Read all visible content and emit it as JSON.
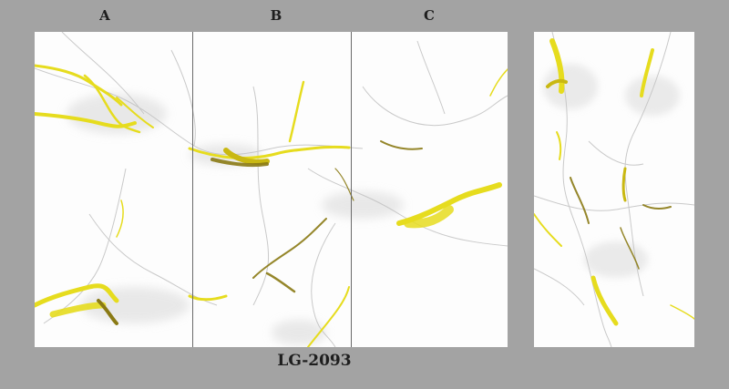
{
  "panels": {
    "labels": [
      "A",
      "B",
      "C"
    ]
  },
  "product": {
    "model_code": "LG-2093"
  },
  "colors": {
    "background": "#a3a3a3",
    "slab": "#fdfdfd",
    "gold_vein": "#e6dc1e",
    "dark_vein": "#8a7a14",
    "grey_vein": "#c8c8c8",
    "label_text": "#1e1e1e"
  }
}
